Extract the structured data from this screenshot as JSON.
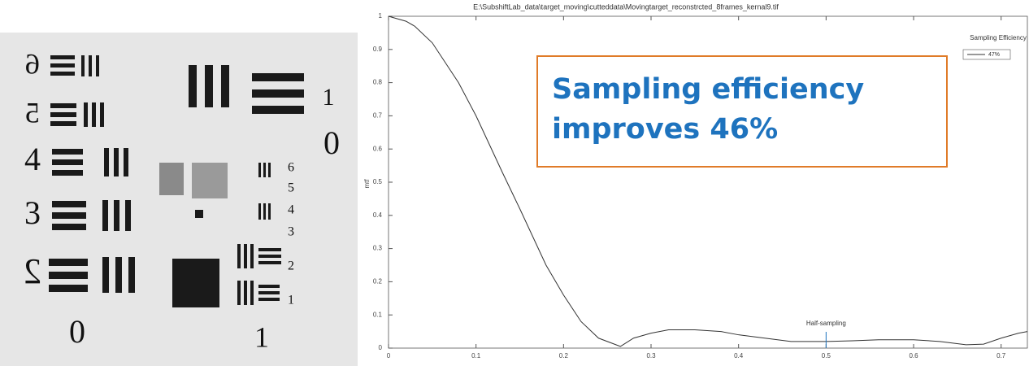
{
  "target": {
    "labels": [
      "6",
      "5",
      "4",
      "3",
      "2",
      "0",
      "1",
      "0",
      "1",
      "6",
      "5",
      "4",
      "3",
      "2",
      "1"
    ]
  },
  "callout": {
    "lines": [
      "Sampling efficiency",
      "improves 46%"
    ]
  },
  "chart_data": {
    "type": "line",
    "title": "E:\\SubshiftLab_data\\target_moving\\cutteddata\\Movingtarget_reconstrcted_8frames_kernal9.tif",
    "ylabel": "mtf",
    "legend_title": "Sampling Efficiency",
    "x": [
      0,
      0.02,
      0.03,
      0.05,
      0.08,
      0.1,
      0.13,
      0.15,
      0.18,
      0.2,
      0.22,
      0.24,
      0.265,
      0.28,
      0.3,
      0.32,
      0.35,
      0.38,
      0.4,
      0.43,
      0.46,
      0.5,
      0.53,
      0.56,
      0.6,
      0.63,
      0.66,
      0.68,
      0.7,
      0.72,
      0.73
    ],
    "series": [
      {
        "name": "47%",
        "color": "#333333",
        "values": [
          1,
          0.985,
          0.97,
          0.92,
          0.8,
          0.7,
          0.53,
          0.42,
          0.25,
          0.16,
          0.08,
          0.03,
          0.005,
          0.03,
          0.045,
          0.055,
          0.055,
          0.05,
          0.04,
          0.03,
          0.02,
          0.02,
          0.022,
          0.025,
          0.025,
          0.02,
          0.01,
          0.012,
          0.03,
          0.045,
          0.05
        ]
      }
    ],
    "annotations": [
      {
        "text": "Half-sampling",
        "x": 0.5
      }
    ],
    "xlim": [
      0,
      0.73
    ],
    "ylim": [
      0,
      1
    ],
    "xticks": [
      0,
      0.1,
      0.2,
      0.3,
      0.4,
      0.5,
      0.6,
      0.7
    ],
    "yticks": [
      0,
      0.1,
      0.2,
      0.3,
      0.4,
      0.5,
      0.6,
      0.7,
      0.8,
      0.9,
      1
    ]
  }
}
